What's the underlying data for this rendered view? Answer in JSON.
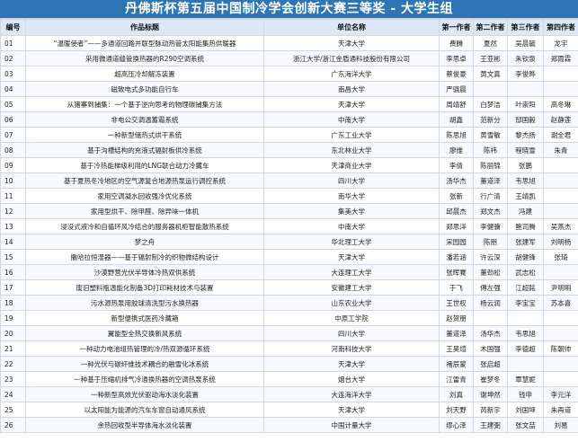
{
  "sheet_title": "丹佛斯杯第五届中国制冷学会创新大赛三等奖 - 大学生组",
  "headers": [
    "编号",
    "作品标题",
    "单位名称",
    "第一作者",
    "第二作者",
    "第三作者",
    "第四作者"
  ],
  "rows": [
    [
      "01",
      "“温暖使者”——多通道回路并联型脉动热管太阳能集热供暖器",
      "天津大学",
      "费腾",
      "夏然",
      "吴晨毓",
      "龙宇"
    ],
    [
      "02",
      "采用微通道缝管换热器的R290空调系统",
      "浙江大学/浙江金盾通科技股份有限公司",
      "李思卓",
      "王亚彬",
      "朱钦泉",
      "郑雨霖"
    ],
    [
      "03",
      "超高压冷却解冻装置",
      "广东海洋大学",
      "蔡俊豪",
      "黄文真",
      "李俊晔",
      ""
    ],
    [
      "04",
      "磁致电式多功能自行车",
      "南昌大学",
      "严骁晨",
      "",
      "",
      ""
    ],
    [
      "05",
      "从猪寨到捕集：一个基于逆向思考的物理碳捕集方法",
      "天津大学",
      "周靖舒",
      "白梦洁",
      "叶崇阳",
      "高冬琳"
    ],
    [
      "06",
      "非电公交调温蓄霜系统",
      "中南大学",
      "胡鑫",
      "范新分",
      "邸国毅",
      "赵静莲"
    ],
    [
      "07",
      "一种新型储热式烘干系统",
      "广东工业大学",
      "陈思旭",
      "黄雪敏",
      "黎杰扬",
      "谢全君"
    ],
    [
      "08",
      "基于沟槽结构的充液式辐射板供冷系统",
      "东北林业大学",
      "廖维",
      "陈祎",
      "程晓雪",
      "朱青"
    ],
    [
      "09",
      "基于冷热能梯级利用的LNG联合动力冷藏车",
      "天津商业大学",
      "李倩",
      "陈丽锦",
      "张鹏",
      ""
    ],
    [
      "10",
      "基于夏热冬冷地区的空气源复合地源热泵运行调控系统",
      "四川大学",
      "汤华杰",
      "董道泽",
      "韦思旭",
      ""
    ],
    [
      "11",
      "家用空调凝水回收强冷优化系统",
      "南华大学",
      "张新",
      "行广清",
      "王靖凯",
      ""
    ],
    [
      "12",
      "家用型烘干、除甲醛、除异味一体机",
      "集美大学",
      "邱晨杰",
      "郑文杰",
      "冯建",
      ""
    ],
    [
      "13",
      "浸没式液冷和自循环风冷结合的服务器机柜智能散热系统",
      "中南大学",
      "郑思洋",
      "李健骥",
      "鲍司腾",
      "吴燕杰"
    ],
    [
      "14",
      "梦之舟",
      "华北理工大学",
      "宋园园",
      "陈朋",
      "张建军",
      "刘明杨"
    ],
    [
      "15",
      "撒哈拉恒湿器——基于辐射制冷的织物微结构设计",
      "天津大学",
      "潘若涵",
      "许云深",
      "胡健锋",
      "张琦"
    ],
    [
      "16",
      "沙漠野营光伏半导体冷热双供系统",
      "大连理工大学",
      "张晖騫",
      "董劲松",
      "武志松",
      ""
    ],
    [
      "17",
      "废旧塑料瓶温能化制备3D打印耗材技术与装置",
      "安徽建工大学",
      "于飞",
      "傅左强",
      "江超銘",
      "尹明明"
    ],
    [
      "18",
      "污水源热泵用胶球清洗型污水换热器",
      "山东农业大学",
      "王世权",
      "杨云润",
      "李宝宝",
      "苏本喜"
    ],
    [
      "19",
      "新型便携式医药冷藏箱",
      "中原工学院",
      "赵贺朋",
      "",
      "",
      ""
    ],
    [
      "20",
      "翼能型全热交换新风系统",
      "四川大学",
      "董道泽",
      "汤华杰",
      "韦思旭",
      ""
    ],
    [
      "21",
      "一种动力电池组热管理的冷/热双源循环系统",
      "河南科技大学",
      "王昊煊",
      "木国强",
      "李德超",
      "陈朝帅"
    ],
    [
      "22",
      "一种光伏与碳纤维技术耦合的融雪化冰系统",
      "天津大学",
      "褚辰蒙",
      "张启超",
      "",
      ""
    ],
    [
      "23",
      "一种基于压缩机排气冷通换热器的空调热泵系统",
      "烟台大学",
      "江雷青",
      "崔梦冬",
      "覃慧妮",
      ""
    ],
    [
      "24",
      "一种新型高效光伏驱动海水淡化装置",
      "大连海洋大学",
      "刘真",
      "谢坤然",
      "钱申",
      "李元洋"
    ],
    [
      "25",
      "以太阳能为能源的汽车车窗自动通风系统",
      "天津大学",
      "刘天野",
      "芮新宇",
      "刘国坤",
      "朱再道"
    ],
    [
      "26",
      "余热回收型半导体海水淡化装置",
      "中国计量大学",
      "缪心泽",
      "王建弼",
      "张文喆",
      "刘易"
    ]
  ]
}
